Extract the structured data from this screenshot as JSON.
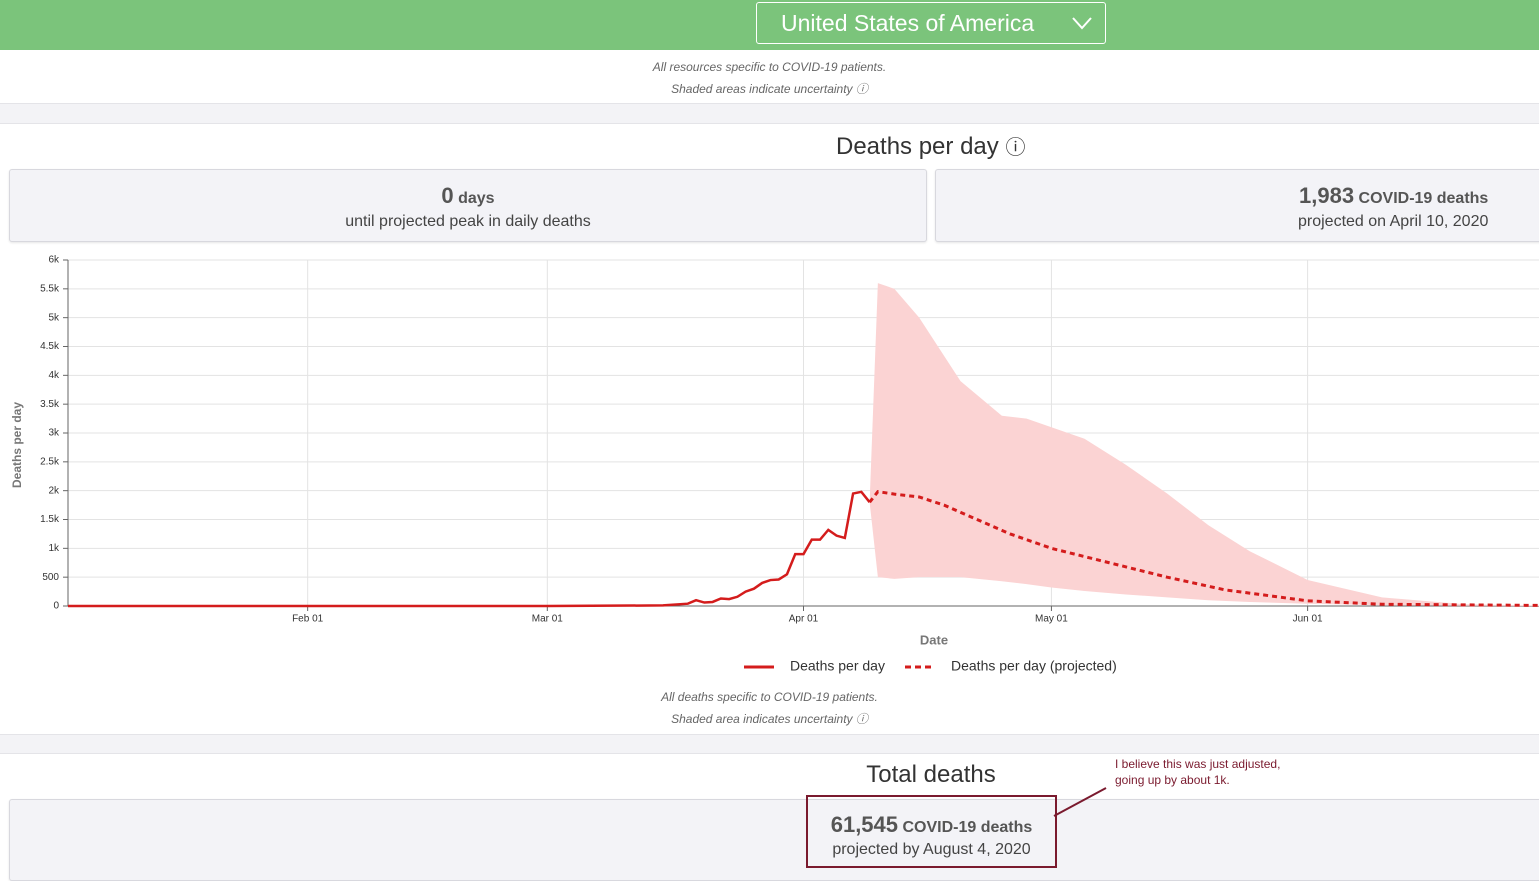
{
  "header": {
    "country": "United States of America"
  },
  "top_notes": [
    "All resources specific to COVID-19 patients.",
    "Shaded areas indicate uncertainty"
  ],
  "deaths_section": {
    "title": "Deaths per day",
    "cards": [
      {
        "number": "0",
        "unit": "days",
        "caption": "until projected peak in daily deaths"
      },
      {
        "number": "1,983",
        "unit": "COVID-19 deaths",
        "caption": "projected on April 10, 2020"
      }
    ],
    "notes": [
      "All deaths specific to COVID-19 patients.",
      "Shaded area indicates uncertainty"
    ]
  },
  "chart_data": {
    "type": "line",
    "x_label": "Date",
    "y_label": "Deaths per day",
    "xlim": [
      "Jan 03",
      "Jun 29"
    ],
    "xticks": [
      "Feb 01",
      "Mar 01",
      "Apr 01",
      "May 01",
      "Jun 01"
    ],
    "ylim": [
      0,
      6000
    ],
    "yticks": [
      0,
      500,
      {
        "value": 1000,
        "label": "1k"
      },
      {
        "value": 1500,
        "label": "1.5k"
      },
      {
        "value": 2000,
        "label": "2k"
      },
      {
        "value": 2500,
        "label": "2.5k"
      },
      {
        "value": 3000,
        "label": "3k"
      },
      {
        "value": 3500,
        "label": "3.5k"
      },
      {
        "value": 4000,
        "label": "4k"
      },
      {
        "value": 4500,
        "label": "4.5k"
      },
      {
        "value": 5000,
        "label": "5k"
      },
      {
        "value": 5500,
        "label": "5.5k"
      },
      {
        "value": 6000,
        "label": "6k"
      }
    ],
    "grid": true,
    "series": [
      {
        "name": "Deaths per day",
        "color": "#d41c1c",
        "style": "solid",
        "x": [
          "Jan 03",
          "Mar 01",
          "Mar 15",
          "Mar 18",
          "Mar 19",
          "Mar 20",
          "Mar 21",
          "Mar 22",
          "Mar 23",
          "Mar 24",
          "Mar 25",
          "Mar 26",
          "Mar 27",
          "Mar 28",
          "Mar 29",
          "Mar 30",
          "Mar 31",
          "Apr 01",
          "Apr 02",
          "Apr 03",
          "Apr 04",
          "Apr 05",
          "Apr 06",
          "Apr 07",
          "Apr 08",
          "Apr 09"
        ],
        "values": [
          0,
          0,
          10,
          40,
          100,
          60,
          70,
          130,
          120,
          160,
          250,
          300,
          400,
          450,
          460,
          550,
          900,
          900,
          1150,
          1150,
          1320,
          1220,
          1180,
          1950,
          1980,
          1800
        ]
      },
      {
        "name": "Deaths per day (projected)",
        "color": "#d41c1c",
        "style": "dashed",
        "x": [
          "Apr 09",
          "Apr 10",
          "Apr 12",
          "Apr 15",
          "Apr 18",
          "Apr 22",
          "Apr 26",
          "May 01",
          "May 08",
          "May 15",
          "May 22",
          "Jun 01",
          "Jun 10",
          "Jun 29"
        ],
        "values": [
          1800,
          1983,
          1940,
          1890,
          1750,
          1500,
          1250,
          1000,
          750,
          500,
          280,
          90,
          30,
          10
        ]
      }
    ],
    "band": {
      "color": "#fbd3d3",
      "x": [
        "Apr 09",
        "Apr 10",
        "Apr 12",
        "Apr 15",
        "Apr 20",
        "Apr 25",
        "Apr 28",
        "May 01",
        "May 05",
        "May 10",
        "May 15",
        "May 20",
        "May 25",
        "Jun 01",
        "Jun 10",
        "Jun 20",
        "Jun 29"
      ],
      "upper": [
        1800,
        5600,
        5500,
        5000,
        3900,
        3300,
        3250,
        3100,
        2900,
        2450,
        1950,
        1400,
        950,
        450,
        150,
        30,
        10
      ],
      "lower": [
        1800,
        500,
        470,
        500,
        500,
        430,
        380,
        320,
        260,
        200,
        150,
        100,
        70,
        40,
        15,
        5,
        0
      ]
    }
  },
  "total_section": {
    "title": "Total deaths",
    "number": "61,545",
    "unit": "COVID-19 deaths",
    "caption": "projected by August 4, 2020",
    "annotation": "I believe this was just adjusted, going up by about 1k."
  }
}
